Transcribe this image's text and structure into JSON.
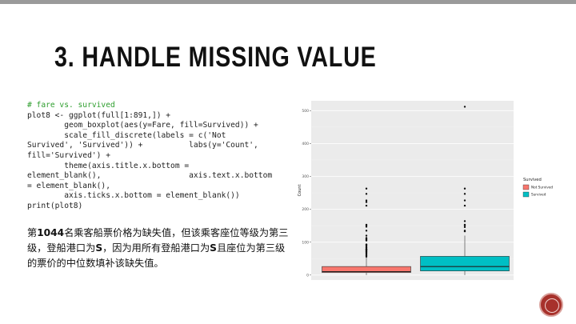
{
  "slide": {
    "title": "3. HANDLE MISSING VALUE",
    "code_comment": "# fare vs. survived",
    "code_lines": [
      "plot8 <- ggplot(full[1:891,]) +",
      "        geom_boxplot(aes(y=Fare, fill=Survived)) +",
      "        scale_fill_discrete(labels = c('Not",
      "Survived', 'Survived')) +          labs(y='Count',",
      "fill='Survived') +",
      "        theme(axis.title.x.bottom =",
      "element_blank(),                   axis.text.x.bottom",
      "= element_blank(),",
      "        axis.ticks.x.bottom = element_blank())",
      "print(plot8)"
    ],
    "note": {
      "p1": "第",
      "n1": "1044",
      "p2": "名乘客船票价格为缺失值，但该乘客座位等级为第三级，登船港口为",
      "n2": "S",
      "p3": "，因为用所有登船港口为",
      "n3": "S",
      "p4": "且座位为第三级的票价的中位数填补该缺失值。"
    }
  },
  "chart_data": {
    "type": "boxplot",
    "ylabel": "Count",
    "ylim": [
      -15,
      530
    ],
    "yticks": [
      0,
      100,
      200,
      300,
      400,
      500
    ],
    "grid": true,
    "legend": {
      "title": "Survived",
      "placement": "right"
    },
    "series": [
      {
        "name": "Not Survived",
        "color": "#f8766d",
        "min": 0,
        "q1": 7.9,
        "median": 10.5,
        "q3": 26,
        "max": 53,
        "outliers": [
          56,
          60,
          63,
          66,
          69,
          71,
          73,
          76,
          77,
          78,
          80,
          83,
          86,
          90,
          91,
          93,
          105,
          108,
          110,
          113,
          120,
          135,
          147,
          151,
          153,
          211,
          222,
          227,
          247,
          263
        ]
      },
      {
        "name": "Survived",
        "color": "#00bfc4",
        "min": 0,
        "q1": 12.5,
        "median": 26,
        "q3": 57,
        "max": 120,
        "outliers": [
          133,
          135,
          146,
          151,
          153,
          164,
          211,
          227,
          247,
          263,
          512
        ]
      }
    ]
  }
}
